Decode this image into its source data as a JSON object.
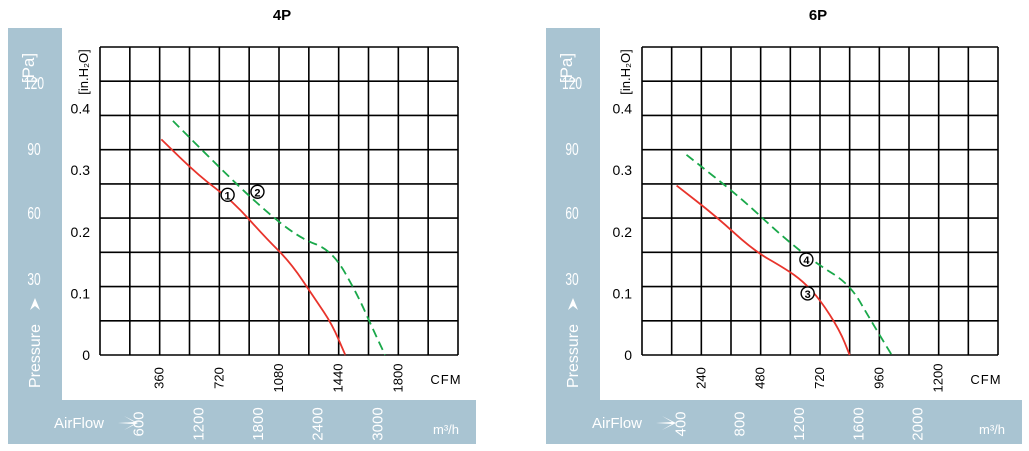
{
  "colors": {
    "band": "#a9c4d2",
    "band_text": "#ffffff",
    "grid": "#000000",
    "series_red": "#e8342c",
    "series_green": "#1aa84a"
  },
  "chart_data": [
    {
      "type": "line",
      "title": "4P",
      "left_unit": "[Pa]",
      "left_ticks": [
        "120",
        "90",
        "60",
        "30"
      ],
      "left_axis_label": "Pressure",
      "right_unit": "[in.H₂O]",
      "right_ticks": [
        "0.4",
        "0.3",
        "0.2",
        "0.1",
        "0"
      ],
      "cfm_unit": "CFM",
      "cfm_ticks": [
        "360",
        "720",
        "1080",
        "1440",
        "1800"
      ],
      "bottom_axis_label": "AirFlow",
      "m3h_unit": "m³/h",
      "m3h_ticks": [
        "600",
        "1200",
        "1800",
        "2400",
        "3000"
      ],
      "xlim_cfm": [
        0,
        2160
      ],
      "ylim_inH2O": [
        0,
        0.5
      ],
      "series": [
        {
          "name": "1",
          "color": "#e8342c",
          "dash": false,
          "marker_at": [
            770,
            0.26
          ],
          "points": [
            [
              370,
              0.35
            ],
            [
              600,
              0.29
            ],
            [
              800,
              0.25
            ],
            [
              1000,
              0.19
            ],
            [
              1150,
              0.15
            ],
            [
              1300,
              0.09
            ],
            [
              1400,
              0.05
            ],
            [
              1480,
              0.0
            ]
          ]
        },
        {
          "name": "2",
          "color": "#1aa84a",
          "dash": true,
          "marker_at": [
            950,
            0.265
          ],
          "points": [
            [
              440,
              0.38
            ],
            [
              700,
              0.31
            ],
            [
              950,
              0.245
            ],
            [
              1200,
              0.19
            ],
            [
              1400,
              0.17
            ],
            [
              1550,
              0.1
            ],
            [
              1650,
              0.04
            ],
            [
              1720,
              0.0
            ]
          ]
        }
      ]
    },
    {
      "type": "line",
      "title": "6P",
      "left_unit": "[Pa]",
      "left_ticks": [
        "120",
        "90",
        "60",
        "30"
      ],
      "left_axis_label": "Pressure",
      "right_unit": "[in.H₂O]",
      "right_ticks": [
        "0.4",
        "0.3",
        "0.2",
        "0.1",
        "0"
      ],
      "cfm_unit": "CFM",
      "cfm_ticks": [
        "240",
        "480",
        "720",
        "960",
        "1200"
      ],
      "bottom_axis_label": "AirFlow",
      "m3h_unit": "m³/h",
      "m3h_ticks": [
        "400",
        "800",
        "1200",
        "1600",
        "2000"
      ],
      "xlim_cfm": [
        0,
        1440
      ],
      "ylim_inH2O": [
        0,
        0.5
      ],
      "series": [
        {
          "name": "3",
          "color": "#e8342c",
          "dash": false,
          "marker_at": [
            670,
            0.1
          ],
          "points": [
            [
              140,
              0.275
            ],
            [
              300,
              0.225
            ],
            [
              450,
              0.17
            ],
            [
              580,
              0.14
            ],
            [
              650,
              0.12
            ],
            [
              720,
              0.09
            ],
            [
              800,
              0.04
            ],
            [
              840,
              0.0
            ]
          ]
        },
        {
          "name": "4",
          "color": "#1aa84a",
          "dash": true,
          "marker_at": [
            665,
            0.155
          ],
          "points": [
            [
              180,
              0.325
            ],
            [
              400,
              0.255
            ],
            [
              560,
              0.195
            ],
            [
              700,
              0.15
            ],
            [
              840,
              0.115
            ],
            [
              920,
              0.06
            ],
            [
              980,
              0.02
            ],
            [
              1010,
              0.0
            ]
          ]
        }
      ]
    }
  ]
}
